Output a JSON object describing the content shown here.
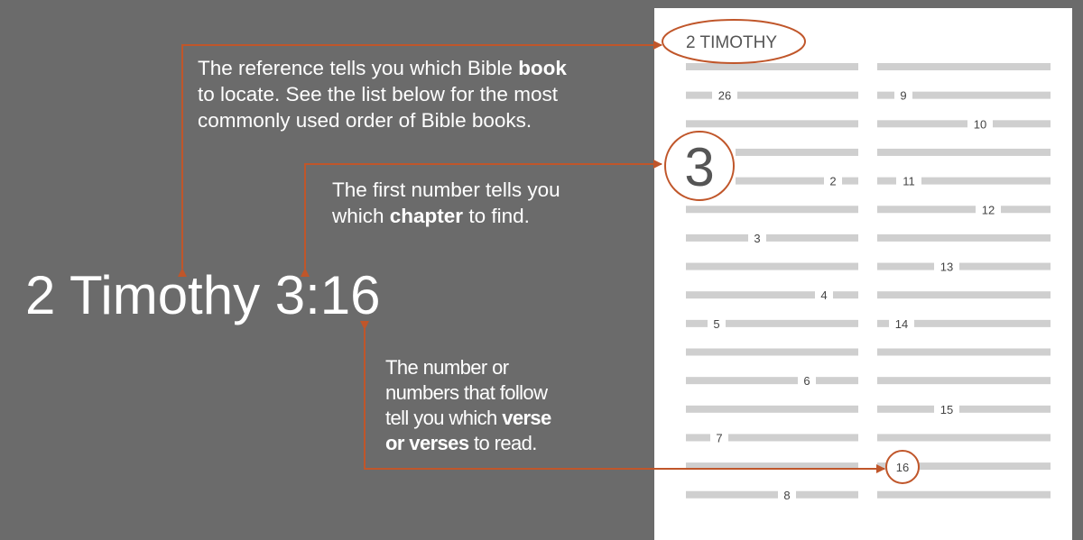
{
  "reference": "2 Timothy 3:16",
  "callouts": {
    "book": {
      "lines": [
        [
          {
            "t": "The reference tells you which Bible "
          },
          {
            "t": "book",
            "b": true
          }
        ],
        [
          {
            "t": "to locate. See the list below for the most"
          }
        ],
        [
          {
            "t": "commonly used order of Bible books."
          }
        ]
      ]
    },
    "chapter": {
      "lines": [
        [
          {
            "t": "The first number tells you"
          }
        ],
        [
          {
            "t": "which "
          },
          {
            "t": "chapter",
            "b": true
          },
          {
            "t": " to find."
          }
        ]
      ]
    },
    "verse": {
      "lines": [
        [
          {
            "t": "The number or"
          }
        ],
        [
          {
            "t": "numbers that follow"
          }
        ],
        [
          {
            "t": "tell you which "
          },
          {
            "t": "verse",
            "b": true
          }
        ],
        [
          {
            "t": "or verses",
            "b": true
          },
          {
            "t": " to read."
          }
        ]
      ]
    }
  },
  "bible_page": {
    "book_heading": "2 TIMOTHY",
    "chapter_number": "3",
    "left_column_verses": [
      "",
      "26",
      "",
      "",
      "2",
      "",
      "3",
      "",
      "4",
      "5",
      "",
      "6",
      "",
      "7",
      "",
      "8"
    ],
    "right_column_verses": [
      "",
      "9",
      "10",
      "",
      "11",
      "12",
      "",
      "13",
      "",
      "14",
      "",
      "",
      "15",
      "",
      "16",
      ""
    ],
    "highlighted_verse": "16"
  },
  "colors": {
    "background": "#6b6b6b",
    "accent": "#c0562a",
    "text_lines": "#cfcfcf",
    "page": "#ffffff"
  }
}
